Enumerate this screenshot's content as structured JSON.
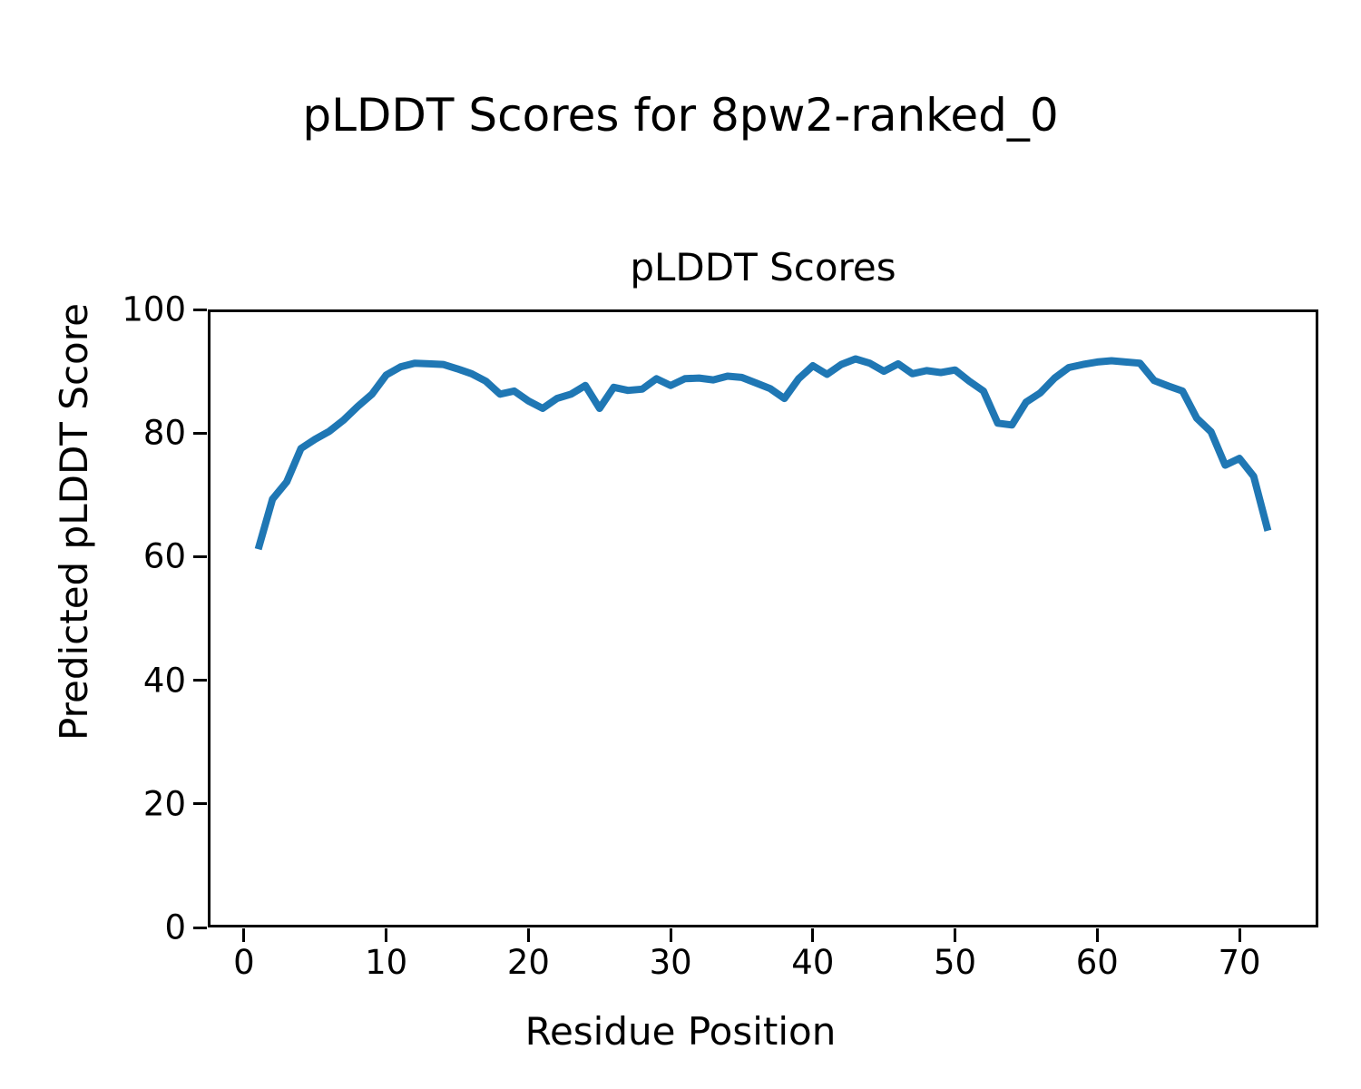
{
  "figure_title": "pLDDT Scores for 8pw2-ranked_0",
  "colors": {
    "line": "#1f77b4",
    "text": "#000000",
    "background": "#ffffff",
    "spine": "#000000"
  },
  "chart_data": {
    "type": "line",
    "title": "pLDDT Scores",
    "xlabel": "Residue Position",
    "ylabel": "Predicted pLDDT Score",
    "grid": false,
    "legend": null,
    "xlim": [
      -2.55,
      75.55
    ],
    "ylim": [
      0,
      100
    ],
    "xticks": [
      0,
      10,
      20,
      30,
      40,
      50,
      60,
      70
    ],
    "yticks": [
      0,
      20,
      40,
      60,
      80,
      100
    ],
    "series_name": "pLDDT",
    "x": [
      1,
      2,
      3,
      4,
      5,
      6,
      7,
      8,
      9,
      10,
      11,
      12,
      13,
      14,
      15,
      16,
      17,
      18,
      19,
      20,
      21,
      22,
      23,
      24,
      25,
      26,
      27,
      28,
      29,
      30,
      31,
      32,
      33,
      34,
      35,
      36,
      37,
      38,
      39,
      40,
      41,
      42,
      43,
      44,
      45,
      46,
      47,
      48,
      49,
      50,
      51,
      52,
      53,
      54,
      55,
      56,
      57,
      58,
      59,
      60,
      61,
      62,
      63,
      64,
      65,
      66,
      67,
      68,
      69,
      70,
      71,
      72
    ],
    "y": [
      61.2,
      69.3,
      72.1,
      77.5,
      79.0,
      80.3,
      82.1,
      84.3,
      86.3,
      89.4,
      90.7,
      91.3,
      91.2,
      91.1,
      90.4,
      89.6,
      88.4,
      86.3,
      86.8,
      85.2,
      84.0,
      85.6,
      86.3,
      87.7,
      84.0,
      87.4,
      86.9,
      87.1,
      88.8,
      87.7,
      88.8,
      88.9,
      88.6,
      89.2,
      89.0,
      88.1,
      87.2,
      85.6,
      88.8,
      90.9,
      89.5,
      91.1,
      92.0,
      91.3,
      90.0,
      91.2,
      89.6,
      90.1,
      89.8,
      90.2,
      88.4,
      86.8,
      81.6,
      81.3,
      85.0,
      86.5,
      88.9,
      90.6,
      91.1,
      91.5,
      91.7,
      91.5,
      91.3,
      88.5,
      87.6,
      86.8,
      82.4,
      80.2,
      74.8,
      75.9,
      73.0,
      64.2
    ]
  }
}
